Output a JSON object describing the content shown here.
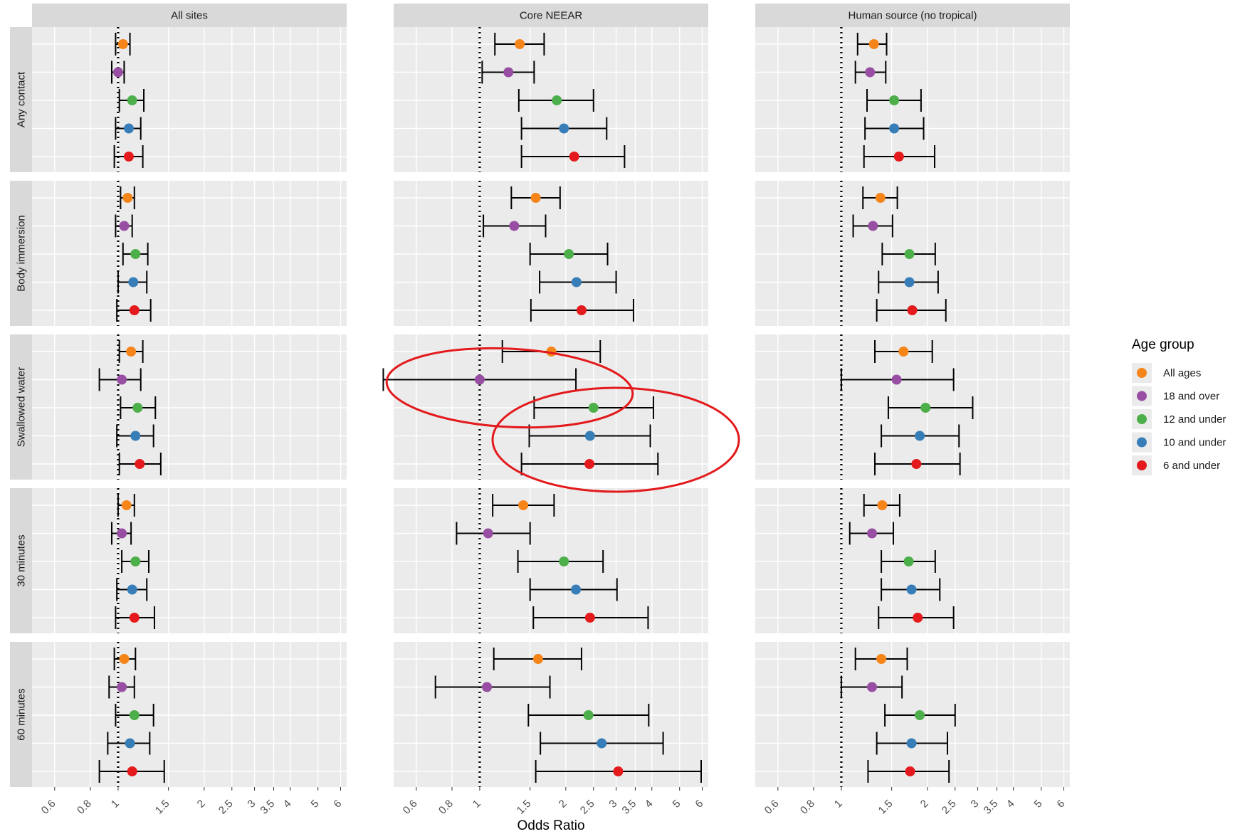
{
  "chart_data": {
    "type": "forest",
    "xlabel": "Odds Ratio",
    "x_scale": "log",
    "xlim": [
      0.5,
      6.3
    ],
    "x_ticks": [
      0.6,
      0.8,
      1,
      1.5,
      2,
      2.5,
      3,
      3.5,
      4,
      5,
      6
    ],
    "x_tick_labels": [
      "0.6",
      "0.8",
      "1",
      "1.5",
      "2",
      "2.5",
      "3",
      "3.5",
      "4",
      "5",
      "6"
    ],
    "reference_line": 1,
    "columns": [
      "All sites",
      "Core NEEAR",
      "Human source (no tropical)"
    ],
    "rows": [
      "Any contact",
      "Body immersion",
      "Swallowed water",
      "30 minutes",
      "60 minutes"
    ],
    "legend": {
      "title": "Age group",
      "position": "right",
      "items": [
        {
          "label": "All ages",
          "color": "#F58518"
        },
        {
          "label": "18 and over",
          "color": "#984EA3"
        },
        {
          "label": "12 and under",
          "color": "#4DAF4A"
        },
        {
          "label": "10 and under",
          "color": "#377EB8"
        },
        {
          "label": "6 and under",
          "color": "#E41A1C"
        }
      ]
    },
    "grid": true,
    "series": [
      {
        "name": "All ages",
        "values": [
          [
            [
              1.04,
              0.98,
              1.1
            ],
            [
              1.38,
              1.13,
              1.68
            ],
            [
              1.3,
              1.14,
              1.44
            ]
          ],
          [
            [
              1.08,
              1.02,
              1.14
            ],
            [
              1.57,
              1.29,
              1.91
            ],
            [
              1.37,
              1.19,
              1.57
            ]
          ],
          [
            [
              1.11,
              1.01,
              1.22
            ],
            [
              1.78,
              1.2,
              2.64
            ],
            [
              1.65,
              1.31,
              2.08
            ]
          ],
          [
            [
              1.07,
              1.0,
              1.14
            ],
            [
              1.42,
              1.11,
              1.82
            ],
            [
              1.39,
              1.2,
              1.6
            ]
          ],
          [
            [
              1.05,
              0.97,
              1.15
            ],
            [
              1.6,
              1.12,
              2.27
            ],
            [
              1.38,
              1.12,
              1.7
            ]
          ]
        ]
      },
      {
        "name": "18 and over",
        "values": [
          [
            [
              1.0,
              0.95,
              1.05
            ],
            [
              1.26,
              1.02,
              1.55
            ],
            [
              1.26,
              1.12,
              1.43
            ]
          ],
          [
            [
              1.05,
              0.98,
              1.12
            ],
            [
              1.32,
              1.03,
              1.7
            ],
            [
              1.29,
              1.1,
              1.51
            ]
          ],
          [
            [
              1.03,
              0.86,
              1.2
            ],
            [
              1.0,
              0.46,
              2.17
            ],
            [
              1.56,
              1.0,
              2.47
            ]
          ],
          [
            [
              1.03,
              0.95,
              1.11
            ],
            [
              1.07,
              0.83,
              1.5
            ],
            [
              1.28,
              1.07,
              1.52
            ]
          ],
          [
            [
              1.03,
              0.93,
              1.14
            ],
            [
              1.06,
              0.7,
              1.76
            ],
            [
              1.28,
              1.0,
              1.63
            ]
          ]
        ]
      },
      {
        "name": "12 and under",
        "values": [
          [
            [
              1.12,
              1.01,
              1.23
            ],
            [
              1.86,
              1.37,
              2.5
            ],
            [
              1.53,
              1.23,
              1.9
            ]
          ],
          [
            [
              1.15,
              1.04,
              1.27
            ],
            [
              2.05,
              1.5,
              2.8
            ],
            [
              1.73,
              1.39,
              2.13
            ]
          ],
          [
            [
              1.17,
              1.02,
              1.35
            ],
            [
              2.5,
              1.55,
              4.05
            ],
            [
              1.97,
              1.46,
              2.88
            ]
          ],
          [
            [
              1.15,
              1.03,
              1.28
            ],
            [
              1.97,
              1.36,
              2.7
            ],
            [
              1.72,
              1.38,
              2.13
            ]
          ],
          [
            [
              1.14,
              0.98,
              1.33
            ],
            [
              2.4,
              1.48,
              3.9
            ],
            [
              1.88,
              1.42,
              2.5
            ]
          ]
        ]
      },
      {
        "name": "10 and under",
        "values": [
          [
            [
              1.09,
              0.98,
              1.2
            ],
            [
              1.97,
              1.4,
              2.78
            ],
            [
              1.53,
              1.21,
              1.94
            ]
          ],
          [
            [
              1.13,
              1.0,
              1.26
            ],
            [
              2.18,
              1.62,
              3.0
            ],
            [
              1.73,
              1.35,
              2.18
            ]
          ],
          [
            [
              1.15,
              0.99,
              1.33
            ],
            [
              2.43,
              1.49,
              3.95
            ],
            [
              1.88,
              1.38,
              2.58
            ]
          ],
          [
            [
              1.12,
              0.99,
              1.26
            ],
            [
              2.17,
              1.5,
              3.02
            ],
            [
              1.76,
              1.38,
              2.21
            ]
          ],
          [
            [
              1.1,
              0.92,
              1.29
            ],
            [
              2.67,
              1.63,
              4.38
            ],
            [
              1.76,
              1.33,
              2.35
            ]
          ]
        ]
      },
      {
        "name": "6 and under",
        "values": [
          [
            [
              1.09,
              0.97,
              1.22
            ],
            [
              2.14,
              1.4,
              3.21
            ],
            [
              1.59,
              1.2,
              2.12
            ]
          ],
          [
            [
              1.14,
              0.99,
              1.3
            ],
            [
              2.27,
              1.51,
              3.45
            ],
            [
              1.77,
              1.33,
              2.32
            ]
          ],
          [
            [
              1.19,
              1.01,
              1.41
            ],
            [
              2.42,
              1.4,
              4.2
            ],
            [
              1.83,
              1.31,
              2.6
            ]
          ],
          [
            [
              1.14,
              0.98,
              1.34
            ],
            [
              2.43,
              1.54,
              3.88
            ],
            [
              1.85,
              1.35,
              2.47
            ]
          ],
          [
            [
              1.12,
              0.86,
              1.45
            ],
            [
              3.05,
              1.57,
              5.95
            ],
            [
              1.74,
              1.24,
              2.38
            ]
          ]
        ]
      }
    ],
    "value_format": "[point estimate, lower CI, upper CI] per row x column",
    "annotations": [
      {
        "type": "ellipse",
        "color": "#E31A1C",
        "panel": "Core NEEAR / Swallowed water",
        "encloses": [
          "18 and over"
        ]
      },
      {
        "type": "ellipse",
        "color": "#E31A1C",
        "panel": "Core NEEAR / Swallowed water",
        "encloses": [
          "12 and under",
          "10 and under",
          "6 and under"
        ]
      }
    ]
  },
  "theme": {
    "panel_bg": "#EBEBEB",
    "strip_bg": "#D9D9D9",
    "grid_color": "#FFFFFF",
    "point_colors": [
      "#F58518",
      "#984EA3",
      "#4DAF4A",
      "#377EB8",
      "#E41A1C"
    ],
    "annotation_color": "#E31A1C"
  }
}
